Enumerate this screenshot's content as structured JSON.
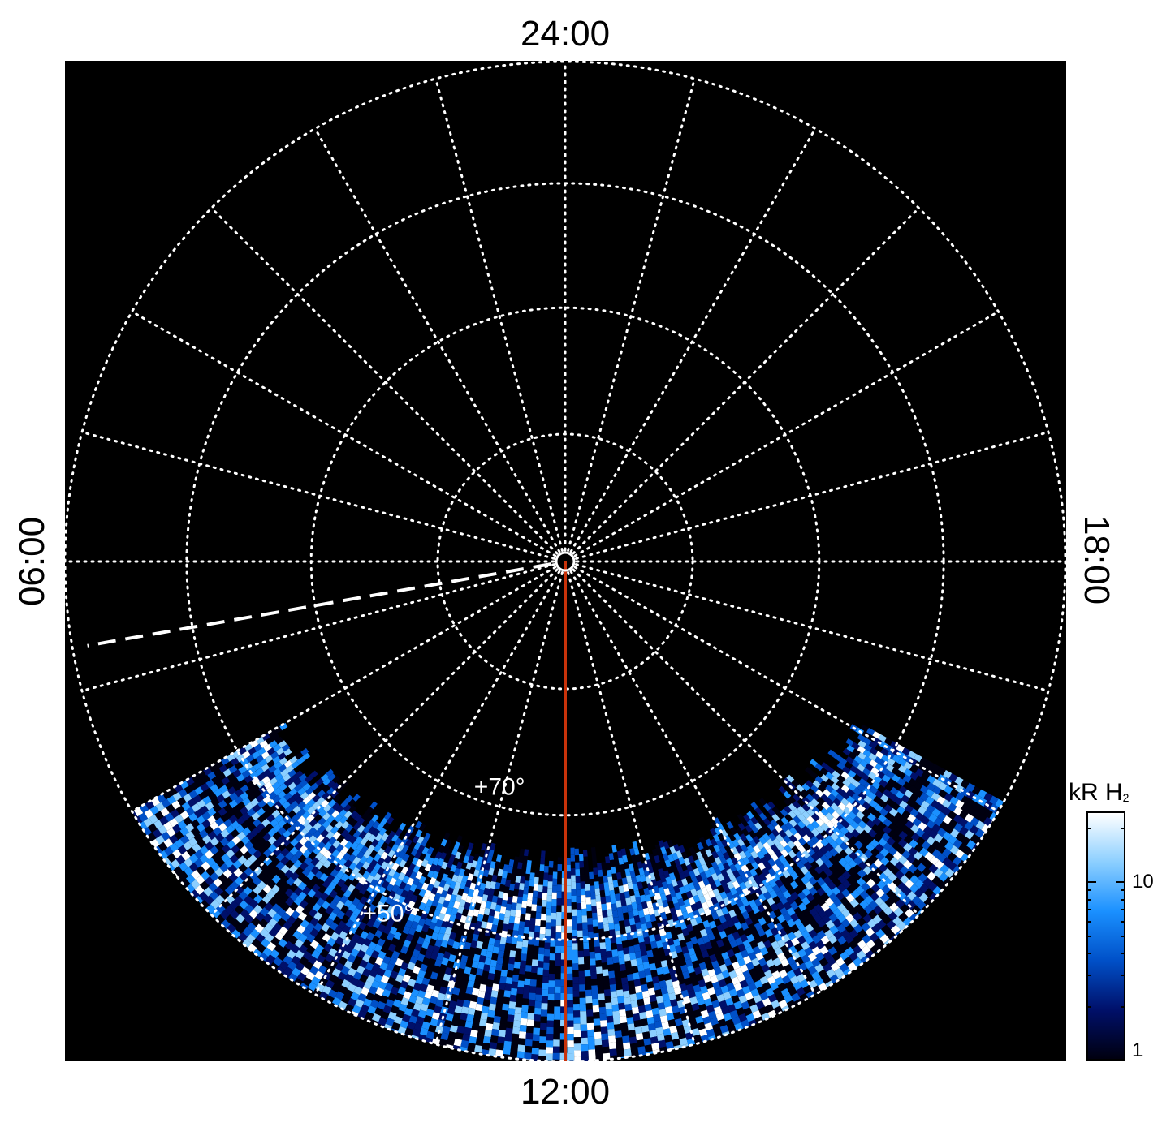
{
  "figure": {
    "lt_labels": {
      "top": "24:00",
      "bottom": "12:00",
      "left": "06:00",
      "right": "18:00"
    },
    "colorbar": {
      "title": "kR H",
      "title_subscript": "2",
      "ticks": [
        {
          "label": "10",
          "value": 10
        },
        {
          "label": "1",
          "value": 1
        }
      ],
      "range": [
        1,
        25
      ],
      "scale": "log",
      "colors": [
        "#000010",
        "#00106a",
        "#0050c8",
        "#1a90ff",
        "#8ccfff",
        "#ffffff"
      ]
    },
    "latitude_labels": [
      {
        "text": "+70°",
        "latitude": 70
      },
      {
        "text": "+50°",
        "latitude": 50
      }
    ]
  },
  "chart_data": {
    "type": "heatmap",
    "projection": "polar, north-pole centred, local time around the edge (24:00 top, 12:00 bottom, 06:00 left, 18:00 right)",
    "latitude_circles_deg": [
      90,
      80,
      70,
      60,
      50
    ],
    "local_time_meridians_hours": [
      0,
      1,
      2,
      3,
      4,
      5,
      6,
      7,
      8,
      9,
      10,
      11,
      12,
      13,
      14,
      15,
      16,
      17,
      18,
      19,
      20,
      21,
      22,
      23
    ],
    "grid": "dotted white",
    "red_line_local_time": "12:00",
    "dashed_line_local_time": "06:40",
    "coverage": "emission only on dayside, roughly 08:00–16:00 local time",
    "colorscale_units": "kR H2",
    "colorscale_range": [
      1,
      25
    ],
    "pole_marker": "white ring at the pole"
  }
}
